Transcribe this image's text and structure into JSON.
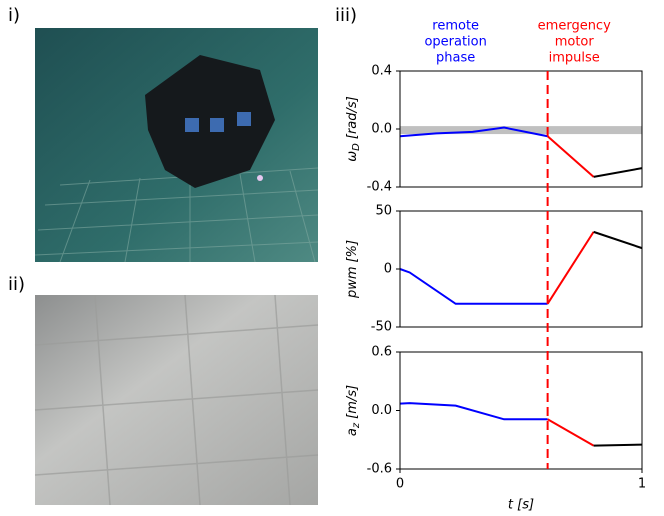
{
  "panel_labels": [
    "i)",
    "ii)",
    "iii)"
  ],
  "chart_data": [
    {
      "type": "line",
      "ylabel": {
        "symbol": "ω",
        "subscript": "D",
        "unit": "[rad/s]"
      },
      "ylim": [
        -0.4,
        0.4
      ],
      "yticks": [
        {
          "value": 0.4,
          "label": "0.4"
        },
        {
          "value": 0.0,
          "label": "0.0"
        },
        {
          "value": -0.4,
          "label": "-0.4"
        }
      ],
      "xlim": [
        0,
        1
      ],
      "band": [
        -0.035,
        0.02
      ],
      "band_color": "#c0c0c0",
      "event_x": 0.61,
      "event_color": "#ff0000",
      "annotations": [
        {
          "lines": [
            "remote",
            "operation",
            "phase"
          ],
          "color": "#0000ff",
          "x": 0.23
        },
        {
          "lines": [
            "emergency",
            "motor",
            "impulse"
          ],
          "color": "#ff0000",
          "x": 0.72
        }
      ],
      "series": [
        {
          "color": "#0000ff",
          "x": [
            0,
            0.15,
            0.3,
            0.43,
            0.61
          ],
          "values": [
            -0.05,
            -0.03,
            -0.02,
            0.01,
            -0.05
          ]
        },
        {
          "color": "#ff0000",
          "x": [
            0.61,
            0.8
          ],
          "values": [
            -0.05,
            -0.33
          ]
        },
        {
          "color": "#000000",
          "x": [
            0.8,
            1
          ],
          "values": [
            -0.33,
            -0.27
          ]
        }
      ]
    },
    {
      "type": "line",
      "ylabel": {
        "symbol": "pwm",
        "unit": "[%]"
      },
      "ylim": [
        -50,
        50
      ],
      "yticks": [
        50,
        0,
        -50
      ],
      "xlim": [
        0,
        1
      ],
      "event_x": 0.61,
      "event_color": "#ff0000",
      "series": [
        {
          "color": "#0000ff",
          "x": [
            0,
            0.04,
            0.23,
            0.61
          ],
          "values": [
            0,
            -3,
            -30,
            -30
          ]
        },
        {
          "color": "#ff0000",
          "x": [
            0.61,
            0.8
          ],
          "values": [
            -30,
            32
          ]
        },
        {
          "color": "#000000",
          "x": [
            0.8,
            1
          ],
          "values": [
            32,
            18
          ]
        }
      ]
    },
    {
      "type": "line",
      "ylabel": {
        "symbol": "a",
        "subscript": "z",
        "unit": "[m/s]"
      },
      "ylim": [
        -0.6,
        0.6
      ],
      "yticks": [
        0.6,
        {
          "value": 0.0,
          "label": "0.0"
        },
        -0.6
      ],
      "xlim": [
        0,
        1
      ],
      "xticks": [
        0,
        1
      ],
      "xlabel": "t [s]",
      "event_x": 0.61,
      "event_color": "#ff0000",
      "series": [
        {
          "color": "#0000ff",
          "x": [
            0,
            0.04,
            0.23,
            0.43,
            0.61
          ],
          "values": [
            0.07,
            0.075,
            0.05,
            -0.09,
            -0.09
          ]
        },
        {
          "color": "#ff0000",
          "x": [
            0.61,
            0.8
          ],
          "values": [
            -0.09,
            -0.36
          ]
        },
        {
          "color": "#000000",
          "x": [
            0.8,
            1
          ],
          "values": [
            -0.36,
            -0.35
          ]
        }
      ]
    }
  ]
}
